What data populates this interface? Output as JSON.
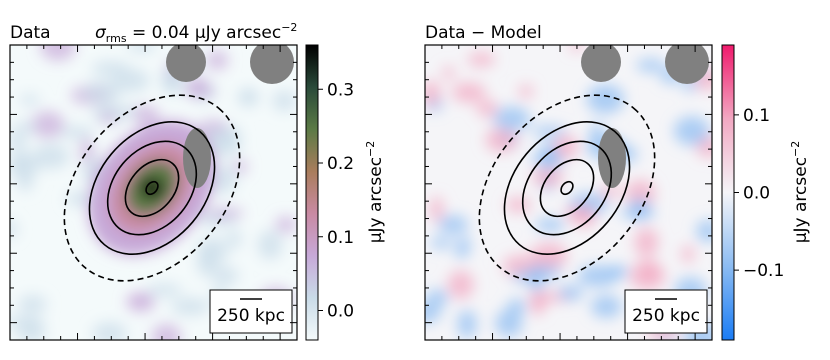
{
  "chart_data": [
    {
      "type": "image",
      "title": "Data",
      "annotation": {
        "symbol": "σ",
        "subscript": "rms",
        "text": " = 0.04 μJy arcsec",
        "superscript": "−2"
      },
      "colorbar_label": "μJy arcsec",
      "colorbar_label_superscript": "−2",
      "clim": [
        -0.04,
        0.36
      ],
      "cticks": [
        {
          "value": 0,
          "label": "0.0"
        },
        {
          "value": 0.1,
          "label": "0.1"
        },
        {
          "value": 0.2,
          "label": "0.2"
        },
        {
          "value": 0.3,
          "label": "0.3"
        }
      ],
      "colormap": [
        "#f4fafb",
        "#c9dbe8",
        "#c7a9d8",
        "#c98aa3",
        "#a97d5c",
        "#5b7a45",
        "#2a4a3a",
        "#000000"
      ],
      "scale_bar": "250 kpc"
    },
    {
      "type": "image",
      "title": "Data − Model",
      "colorbar_label": "μJy arcsec",
      "colorbar_label_superscript": "−2",
      "clim": [
        -0.19,
        0.19
      ],
      "cticks": [
        {
          "value": -0.1,
          "label": "−0.1"
        },
        {
          "value": 0,
          "label": "0.0"
        },
        {
          "value": 0.1,
          "label": "0.1"
        }
      ],
      "colormap": [
        "#1a7cf5",
        "#8cbcf2",
        "#f5f5f8",
        "#f2a8c2",
        "#f01a6c"
      ],
      "scale_bar": "250 kpc"
    }
  ]
}
